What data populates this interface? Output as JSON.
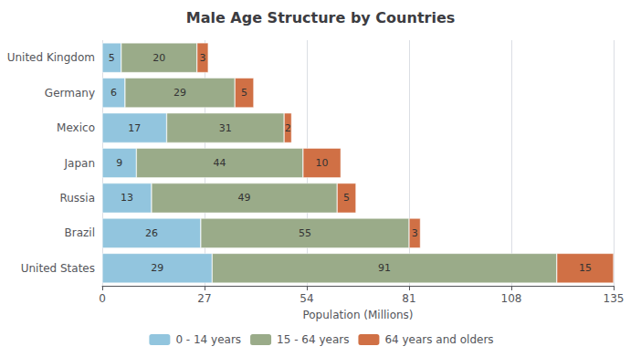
{
  "chart_data": {
    "type": "bar",
    "orientation": "horizontal",
    "stacked": true,
    "title": "Male Age Structure by Countries",
    "xlabel": "Population (Millions)",
    "categories": [
      "United States",
      "Brazil",
      "Russia",
      "Japan",
      "Mexico",
      "Germany",
      "United Kingdom"
    ],
    "series": [
      {
        "name": "0 - 14 years",
        "color": "#92c5de",
        "values": [
          29,
          26,
          13,
          9,
          17,
          6,
          5
        ]
      },
      {
        "name": "15 - 64 years",
        "color": "#9aab89",
        "values": [
          91,
          55,
          49,
          44,
          31,
          29,
          20
        ]
      },
      {
        "name": "64 years and olders",
        "color": "#d07045",
        "values": [
          15,
          3,
          5,
          10,
          2,
          5,
          3
        ]
      }
    ],
    "xlim": [
      0,
      135
    ],
    "xticks": [
      0,
      27,
      54,
      81,
      108,
      135
    ],
    "grid": true,
    "legend": "bottom",
    "data_labels": true
  }
}
